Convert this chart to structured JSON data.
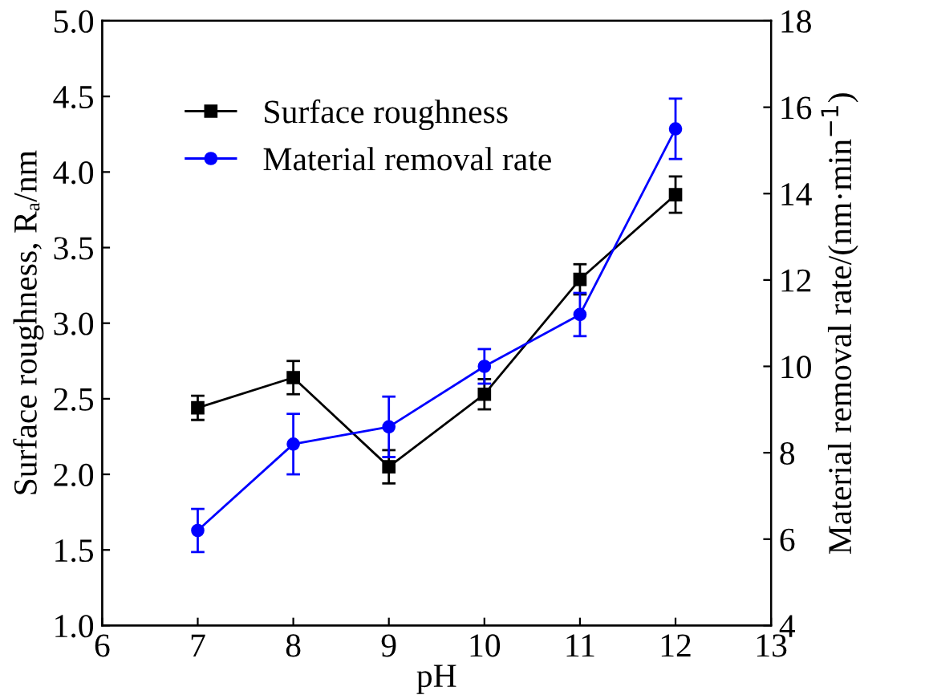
{
  "chart_data": {
    "type": "line",
    "xlabel": "pH",
    "ylabel": "Surface roughness, Rₐ/nm",
    "y2label": "Material removal rate/(nm·min$^{−1}$)",
    "x": [
      7,
      8,
      9,
      10,
      11,
      12
    ],
    "series": [
      {
        "name": "Surface roughness",
        "color": "#000000",
        "marker": "square",
        "values": [
          2.44,
          2.64,
          2.05,
          2.53,
          3.29,
          3.85
        ],
        "errors": [
          0.08,
          0.11,
          0.11,
          0.1,
          0.1,
          0.12
        ]
      },
      {
        "name": "Material removal rate",
        "color": "#0000ff",
        "marker": "circle",
        "axis": "y2",
        "values": [
          6.2,
          8.2,
          8.6,
          10.0,
          11.2,
          15.5
        ],
        "errors": [
          0.5,
          0.7,
          0.7,
          0.4,
          0.5,
          0.7
        ]
      }
    ],
    "xlim": [
      6,
      13
    ],
    "xticks": [
      6,
      7,
      8,
      9,
      10,
      11,
      12,
      13
    ],
    "ylim": [
      1.0,
      5.0
    ],
    "yticks": [
      {
        "value": 1.0,
        "label": "1.0"
      },
      {
        "value": 1.5,
        "label": "1.5"
      },
      {
        "value": 2.0,
        "label": "2.0"
      },
      {
        "value": 2.5,
        "label": "2.5"
      },
      {
        "value": 3.0,
        "label": "3.0"
      },
      {
        "value": 3.5,
        "label": "3.5"
      },
      {
        "value": 4.0,
        "label": "4.0"
      },
      {
        "value": 4.5,
        "label": "4.5"
      },
      {
        "value": 5.0,
        "label": "5.0"
      }
    ],
    "y2lim": [
      4,
      18
    ],
    "y2ticks": [
      4,
      6,
      8,
      10,
      12,
      14,
      16,
      18
    ],
    "grid": false,
    "legend": "top left",
    "line_style": "solid"
  }
}
